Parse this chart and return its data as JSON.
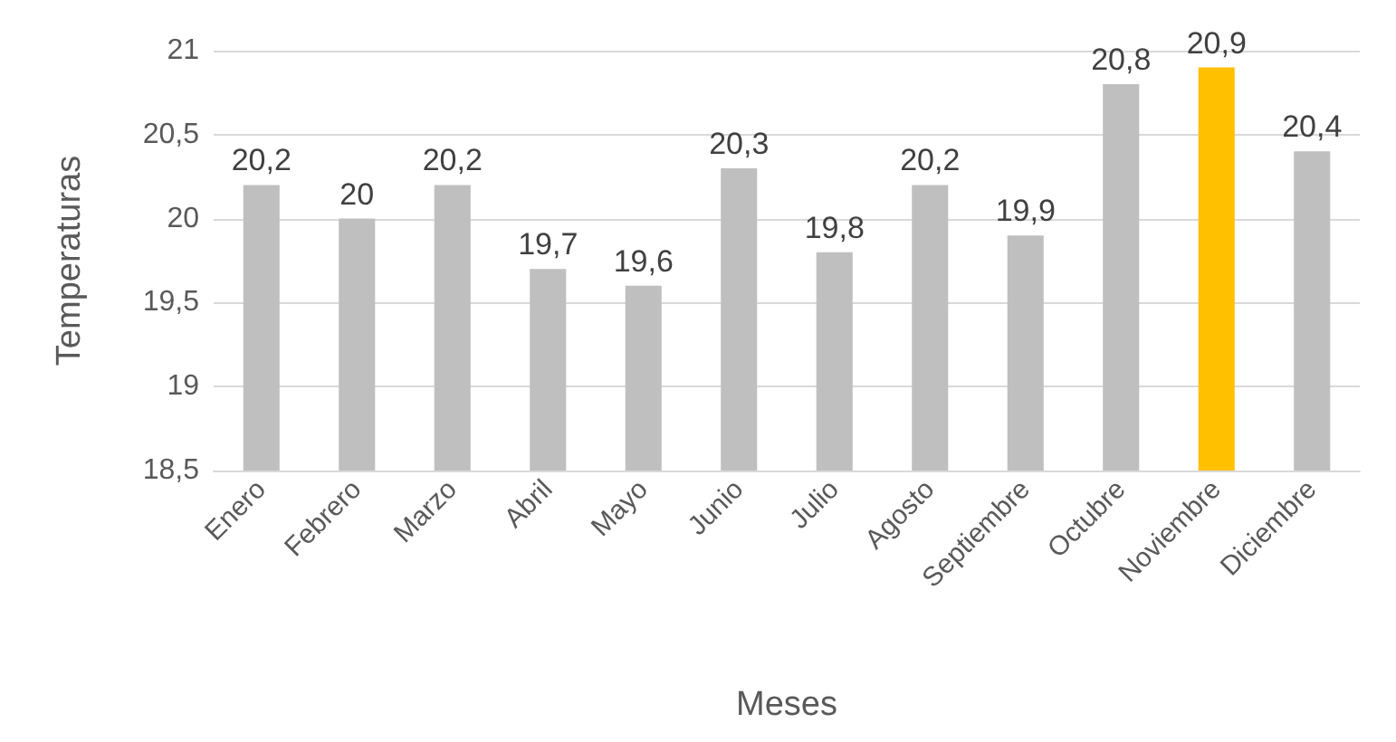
{
  "chart_data": {
    "type": "bar",
    "xlabel": "Meses",
    "ylabel": "Temperaturas",
    "categories": [
      "Enero",
      "Febrero",
      "Marzo",
      "Abril",
      "Mayo",
      "Junio",
      "Julio",
      "Agosto",
      "Septiembre",
      "Octubre",
      "Noviembre",
      "Diciembre"
    ],
    "values": [
      20.2,
      20,
      20.2,
      19.7,
      19.6,
      20.3,
      19.8,
      20.2,
      19.9,
      20.8,
      20.9,
      20.4
    ],
    "colors": [
      "#bfbfbf",
      "#bfbfbf",
      "#bfbfbf",
      "#bfbfbf",
      "#bfbfbf",
      "#bfbfbf",
      "#bfbfbf",
      "#bfbfbf",
      "#bfbfbf",
      "#bfbfbf",
      "#ffc000",
      "#bfbfbf"
    ],
    "value_labels": [
      "20,2",
      "20",
      "20,2",
      "19,7",
      "19,6",
      "20,3",
      "19,8",
      "20,2",
      "19,9",
      "20,8",
      "20,9",
      "20,4"
    ],
    "ylim": [
      18.5,
      21
    ],
    "yticks": [
      {
        "value": 18.5,
        "label": "18,5"
      },
      {
        "value": 19,
        "label": "19"
      },
      {
        "value": 19.5,
        "label": "19,5"
      },
      {
        "value": 20,
        "label": "20"
      },
      {
        "value": 20.5,
        "label": "20,5"
      },
      {
        "value": 21,
        "label": "21"
      }
    ],
    "grid": "y"
  }
}
